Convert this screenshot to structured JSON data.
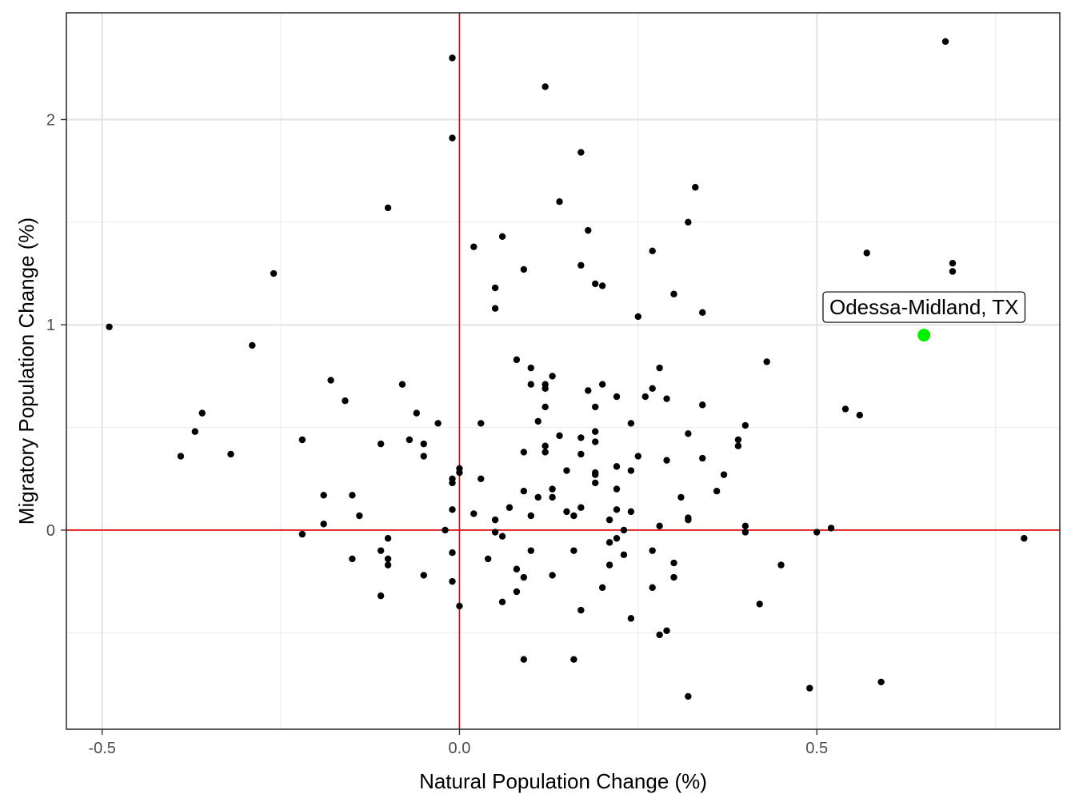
{
  "chart_data": {
    "type": "scatter",
    "title": "",
    "xlabel": "Natural Population Change (%)",
    "ylabel": "Migratory Population Change (%)",
    "xlim": [
      -0.55,
      0.84
    ],
    "ylim": [
      -0.97,
      2.52
    ],
    "x_ticks": [
      -0.5,
      0.0,
      0.5
    ],
    "x_tick_labels": [
      "-0.5",
      "0.0",
      "0.5"
    ],
    "y_ticks": [
      0,
      1,
      2
    ],
    "y_tick_labels": [
      "0",
      "1",
      "2"
    ],
    "x_minor_gridlines": [
      -0.25,
      0.25,
      0.75
    ],
    "y_minor_gridlines": [
      -0.5,
      0.5,
      1.5
    ],
    "grid": true,
    "reference_lines": {
      "x": 0,
      "y": 0,
      "color": "#e00000"
    },
    "point_color": "#000000",
    "highlight_color": "#00ee00",
    "highlight": {
      "x": 0.65,
      "y": 0.95,
      "label": "Odessa-Midland, TX"
    },
    "points": [
      {
        "x": -0.49,
        "y": 0.99
      },
      {
        "x": -0.39,
        "y": 0.36
      },
      {
        "x": -0.37,
        "y": 0.48
      },
      {
        "x": -0.36,
        "y": 0.57
      },
      {
        "x": -0.32,
        "y": 0.37
      },
      {
        "x": -0.29,
        "y": 0.9
      },
      {
        "x": -0.26,
        "y": 1.25
      },
      {
        "x": -0.22,
        "y": 0.44
      },
      {
        "x": -0.22,
        "y": -0.02
      },
      {
        "x": -0.19,
        "y": 0.17
      },
      {
        "x": -0.19,
        "y": 0.03
      },
      {
        "x": -0.18,
        "y": 0.73
      },
      {
        "x": -0.16,
        "y": 0.63
      },
      {
        "x": -0.15,
        "y": 0.17
      },
      {
        "x": -0.15,
        "y": -0.14
      },
      {
        "x": -0.14,
        "y": 0.07
      },
      {
        "x": -0.11,
        "y": 0.42
      },
      {
        "x": -0.11,
        "y": -0.1
      },
      {
        "x": -0.11,
        "y": -0.32
      },
      {
        "x": -0.1,
        "y": 1.57
      },
      {
        "x": -0.1,
        "y": -0.04
      },
      {
        "x": -0.1,
        "y": -0.14
      },
      {
        "x": -0.1,
        "y": -0.17
      },
      {
        "x": -0.08,
        "y": 0.71
      },
      {
        "x": -0.07,
        "y": 0.44
      },
      {
        "x": -0.06,
        "y": 0.57
      },
      {
        "x": -0.05,
        "y": 0.42
      },
      {
        "x": -0.05,
        "y": 0.36
      },
      {
        "x": -0.05,
        "y": -0.22
      },
      {
        "x": -0.03,
        "y": 0.52
      },
      {
        "x": -0.02,
        "y": 0.0
      },
      {
        "x": -0.01,
        "y": 2.3
      },
      {
        "x": -0.01,
        "y": 1.91
      },
      {
        "x": -0.01,
        "y": 0.25
      },
      {
        "x": -0.01,
        "y": 0.23
      },
      {
        "x": -0.01,
        "y": 0.1
      },
      {
        "x": -0.01,
        "y": -0.11
      },
      {
        "x": -0.01,
        "y": -0.25
      },
      {
        "x": 0.0,
        "y": 0.3
      },
      {
        "x": 0.0,
        "y": 0.28
      },
      {
        "x": 0.0,
        "y": -0.37
      },
      {
        "x": 0.02,
        "y": 1.38
      },
      {
        "x": 0.02,
        "y": 0.08
      },
      {
        "x": 0.03,
        "y": 0.52
      },
      {
        "x": 0.03,
        "y": 0.25
      },
      {
        "x": 0.04,
        "y": -0.14
      },
      {
        "x": 0.05,
        "y": 1.18
      },
      {
        "x": 0.05,
        "y": 1.08
      },
      {
        "x": 0.05,
        "y": 0.05
      },
      {
        "x": 0.05,
        "y": -0.01
      },
      {
        "x": 0.06,
        "y": 1.43
      },
      {
        "x": 0.06,
        "y": -0.03
      },
      {
        "x": 0.06,
        "y": -0.35
      },
      {
        "x": 0.07,
        "y": 0.11
      },
      {
        "x": 0.08,
        "y": 0.83
      },
      {
        "x": 0.08,
        "y": -0.19
      },
      {
        "x": 0.08,
        "y": -0.3
      },
      {
        "x": 0.09,
        "y": 1.27
      },
      {
        "x": 0.09,
        "y": 0.38
      },
      {
        "x": 0.09,
        "y": 0.19
      },
      {
        "x": 0.09,
        "y": -0.23
      },
      {
        "x": 0.09,
        "y": -0.63
      },
      {
        "x": 0.1,
        "y": 0.79
      },
      {
        "x": 0.1,
        "y": 0.71
      },
      {
        "x": 0.1,
        "y": 0.07
      },
      {
        "x": 0.1,
        "y": -0.1
      },
      {
        "x": 0.11,
        "y": 0.53
      },
      {
        "x": 0.11,
        "y": 0.16
      },
      {
        "x": 0.12,
        "y": 2.16
      },
      {
        "x": 0.12,
        "y": 0.71
      },
      {
        "x": 0.12,
        "y": 0.69
      },
      {
        "x": 0.12,
        "y": 0.6
      },
      {
        "x": 0.12,
        "y": 0.41
      },
      {
        "x": 0.12,
        "y": 0.38
      },
      {
        "x": 0.13,
        "y": 0.75
      },
      {
        "x": 0.13,
        "y": 0.2
      },
      {
        "x": 0.13,
        "y": 0.16
      },
      {
        "x": 0.13,
        "y": -0.22
      },
      {
        "x": 0.14,
        "y": 1.6
      },
      {
        "x": 0.14,
        "y": 0.46
      },
      {
        "x": 0.15,
        "y": 0.29
      },
      {
        "x": 0.15,
        "y": 0.09
      },
      {
        "x": 0.16,
        "y": 0.07
      },
      {
        "x": 0.16,
        "y": -0.1
      },
      {
        "x": 0.16,
        "y": -0.63
      },
      {
        "x": 0.17,
        "y": 1.84
      },
      {
        "x": 0.17,
        "y": 1.29
      },
      {
        "x": 0.17,
        "y": 0.45
      },
      {
        "x": 0.17,
        "y": 0.37
      },
      {
        "x": 0.17,
        "y": 0.11
      },
      {
        "x": 0.17,
        "y": -0.39
      },
      {
        "x": 0.18,
        "y": 1.46
      },
      {
        "x": 0.18,
        "y": 0.68
      },
      {
        "x": 0.19,
        "y": 1.2
      },
      {
        "x": 0.19,
        "y": 0.6
      },
      {
        "x": 0.19,
        "y": 0.48
      },
      {
        "x": 0.19,
        "y": 0.43
      },
      {
        "x": 0.19,
        "y": 0.28
      },
      {
        "x": 0.19,
        "y": 0.27
      },
      {
        "x": 0.19,
        "y": 0.23
      },
      {
        "x": 0.2,
        "y": 1.19
      },
      {
        "x": 0.2,
        "y": 0.71
      },
      {
        "x": 0.2,
        "y": -0.28
      },
      {
        "x": 0.21,
        "y": 0.05
      },
      {
        "x": 0.21,
        "y": -0.06
      },
      {
        "x": 0.21,
        "y": -0.17
      },
      {
        "x": 0.22,
        "y": 0.65
      },
      {
        "x": 0.22,
        "y": 0.31
      },
      {
        "x": 0.22,
        "y": 0.2
      },
      {
        "x": 0.22,
        "y": 0.1
      },
      {
        "x": 0.22,
        "y": -0.04
      },
      {
        "x": 0.23,
        "y": 0.0
      },
      {
        "x": 0.23,
        "y": -0.12
      },
      {
        "x": 0.24,
        "y": 0.52
      },
      {
        "x": 0.24,
        "y": 0.29
      },
      {
        "x": 0.24,
        "y": 0.09
      },
      {
        "x": 0.24,
        "y": -0.43
      },
      {
        "x": 0.25,
        "y": 1.04
      },
      {
        "x": 0.25,
        "y": 0.36
      },
      {
        "x": 0.26,
        "y": 0.65
      },
      {
        "x": 0.27,
        "y": 1.36
      },
      {
        "x": 0.27,
        "y": 0.69
      },
      {
        "x": 0.27,
        "y": -0.1
      },
      {
        "x": 0.27,
        "y": -0.28
      },
      {
        "x": 0.28,
        "y": 0.79
      },
      {
        "x": 0.28,
        "y": 0.02
      },
      {
        "x": 0.28,
        "y": -0.51
      },
      {
        "x": 0.29,
        "y": 0.64
      },
      {
        "x": 0.29,
        "y": 0.34
      },
      {
        "x": 0.29,
        "y": -0.49
      },
      {
        "x": 0.3,
        "y": 1.15
      },
      {
        "x": 0.3,
        "y": -0.16
      },
      {
        "x": 0.3,
        "y": -0.23
      },
      {
        "x": 0.31,
        "y": 0.16
      },
      {
        "x": 0.32,
        "y": 1.5
      },
      {
        "x": 0.32,
        "y": 0.47
      },
      {
        "x": 0.32,
        "y": 0.06
      },
      {
        "x": 0.32,
        "y": 0.05
      },
      {
        "x": 0.32,
        "y": -0.81
      },
      {
        "x": 0.33,
        "y": 1.67
      },
      {
        "x": 0.34,
        "y": 1.06
      },
      {
        "x": 0.34,
        "y": 0.61
      },
      {
        "x": 0.34,
        "y": 0.35
      },
      {
        "x": 0.36,
        "y": 0.19
      },
      {
        "x": 0.37,
        "y": 0.27
      },
      {
        "x": 0.39,
        "y": 0.44
      },
      {
        "x": 0.39,
        "y": 0.41
      },
      {
        "x": 0.4,
        "y": 0.51
      },
      {
        "x": 0.4,
        "y": 0.02
      },
      {
        "x": 0.4,
        "y": -0.01
      },
      {
        "x": 0.42,
        "y": -0.36
      },
      {
        "x": 0.43,
        "y": 0.82
      },
      {
        "x": 0.45,
        "y": -0.17
      },
      {
        "x": 0.49,
        "y": -0.77
      },
      {
        "x": 0.5,
        "y": -0.01
      },
      {
        "x": 0.52,
        "y": 0.01
      },
      {
        "x": 0.54,
        "y": 0.59
      },
      {
        "x": 0.56,
        "y": 0.56
      },
      {
        "x": 0.57,
        "y": 1.35
      },
      {
        "x": 0.59,
        "y": -0.74
      },
      {
        "x": 0.68,
        "y": 2.38
      },
      {
        "x": 0.69,
        "y": 1.3
      },
      {
        "x": 0.69,
        "y": 1.26
      },
      {
        "x": 0.79,
        "y": -0.04
      }
    ]
  }
}
